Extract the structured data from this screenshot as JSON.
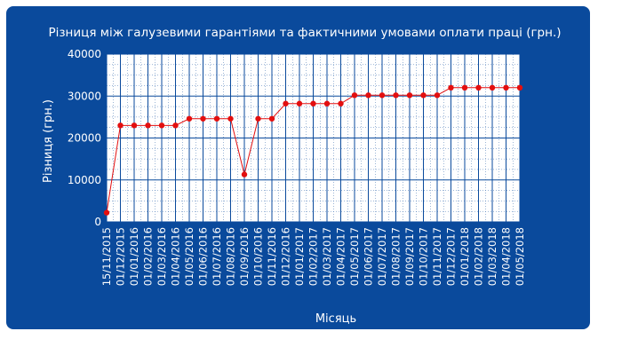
{
  "colors": {
    "panel_bg": "#0a4a9c",
    "plot_bg": "#ffffff",
    "grid": "#0a4a9c",
    "series": "#e30f0f",
    "text": "#ffffff"
  },
  "chart_data": {
    "type": "line",
    "title": "Різниця між галузевими гарантіями та фактичними умовами оплати праці (грн.)",
    "xlabel": "Місяць",
    "ylabel": "Різниця (грн.)",
    "ylim": [
      0,
      40000
    ],
    "yticks": [
      0,
      10000,
      20000,
      30000,
      40000
    ],
    "grid": true,
    "legend": "none",
    "x": [
      "15/11/2015",
      "01/12/2015",
      "01/01/2016",
      "01/02/2016",
      "01/03/2016",
      "01/04/2016",
      "01/05/2016",
      "01/06/2016",
      "01/07/2016",
      "01/08/2016",
      "01/09/2016",
      "01/10/2016",
      "01/11/2016",
      "01/12/2016",
      "01/01/2017",
      "01/02/2017",
      "01/03/2017",
      "01/04/2017",
      "01/05/2017",
      "01/06/2017",
      "01/07/2017",
      "01/08/2017",
      "01/09/2017",
      "01/10/2017",
      "01/11/2017",
      "01/12/2017",
      "01/01/2018",
      "01/02/2018",
      "01/03/2018",
      "01/04/2018",
      "01/05/2018"
    ],
    "series": [
      {
        "values": [
          2200,
          23000,
          23000,
          23000,
          23000,
          23000,
          24600,
          24600,
          24600,
          24600,
          11300,
          24600,
          24600,
          28200,
          28200,
          28200,
          28200,
          28200,
          30200,
          30200,
          30200,
          30200,
          30200,
          30200,
          30200,
          32000,
          32000,
          32000,
          32000,
          32000,
          32000
        ]
      }
    ]
  }
}
